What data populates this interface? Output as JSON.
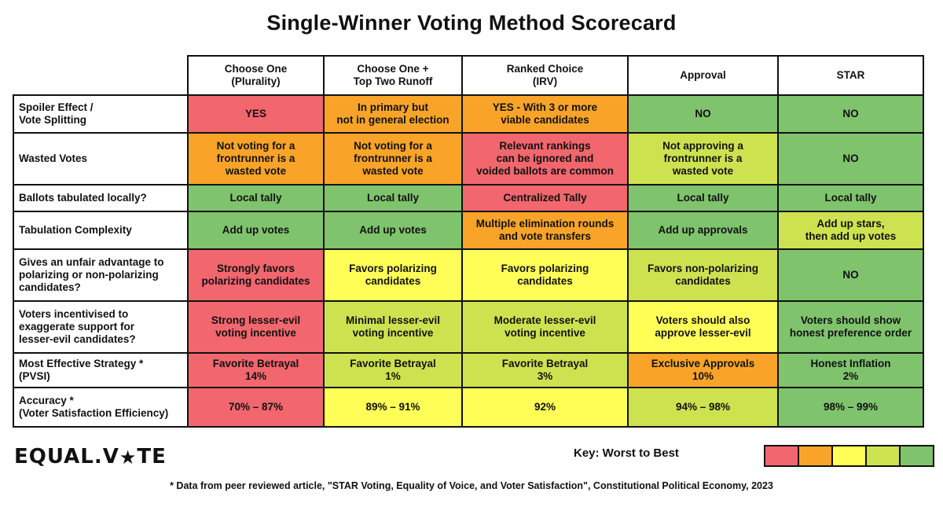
{
  "title": "Single-Winner Voting Method Scorecard",
  "colors": {
    "worst": "#f2666e",
    "bad": "#f9a429",
    "medium": "#ffff57",
    "good": "#cde24f",
    "best": "#7fc36d"
  },
  "columns": [
    "Choose One\n(Plurality)",
    "Choose One +\nTop Two Runoff",
    "Ranked Choice\n(IRV)",
    "Approval",
    "STAR"
  ],
  "rows": [
    {
      "label": "Spoiler Effect /\nVote Splitting",
      "cells": [
        {
          "text": "YES",
          "rating": 1
        },
        {
          "text": "In primary but\nnot in general election",
          "rating": 2
        },
        {
          "text": "YES - With 3 or more\nviable candidates",
          "rating": 2
        },
        {
          "text": "NO",
          "rating": 5
        },
        {
          "text": "NO",
          "rating": 5
        }
      ]
    },
    {
      "label": "Wasted Votes",
      "cells": [
        {
          "text": "Not voting for a\nfrontrunner is a\nwasted vote",
          "rating": 2
        },
        {
          "text": "Not voting for a\nfrontrunner is a\nwasted vote",
          "rating": 2
        },
        {
          "text": "Relevant rankings\ncan be ignored and\nvoided ballots are common",
          "rating": 1
        },
        {
          "text": "Not approving a\nfrontrunner is a\nwasted vote",
          "rating": 4
        },
        {
          "text": "NO",
          "rating": 5
        }
      ]
    },
    {
      "label": "Ballots tabulated locally?",
      "cells": [
        {
          "text": "Local tally",
          "rating": 5
        },
        {
          "text": "Local tally",
          "rating": 5
        },
        {
          "text": "Centralized Tally",
          "rating": 1
        },
        {
          "text": "Local tally",
          "rating": 5
        },
        {
          "text": "Local tally",
          "rating": 5
        }
      ]
    },
    {
      "label": "Tabulation Complexity",
      "cells": [
        {
          "text": "Add up votes",
          "rating": 5
        },
        {
          "text": "Add up votes",
          "rating": 5
        },
        {
          "text": "Multiple elimination rounds\nand vote transfers",
          "rating": 2
        },
        {
          "text": "Add up approvals",
          "rating": 5
        },
        {
          "text": "Add up stars,\nthen add up votes",
          "rating": 4
        }
      ]
    },
    {
      "label": "Gives an unfair advantage to\npolarizing or non-polarizing\ncandidates?",
      "cells": [
        {
          "text": "Strongly favors\npolarizing candidates",
          "rating": 1
        },
        {
          "text": "Favors polarizing\ncandidates",
          "rating": 3
        },
        {
          "text": "Favors polarizing\ncandidates",
          "rating": 3
        },
        {
          "text": "Favors non-polarizing\ncandidates",
          "rating": 4
        },
        {
          "text": "NO",
          "rating": 5
        }
      ]
    },
    {
      "label": "Voters incentivised to\nexaggerate support for\nlesser-evil candidates?",
      "cells": [
        {
          "text": "Strong lesser-evil\nvoting incentive",
          "rating": 1
        },
        {
          "text": "Minimal lesser-evil\nvoting incentive",
          "rating": 4
        },
        {
          "text": "Moderate lesser-evil\nvoting incentive",
          "rating": 4
        },
        {
          "text": "Voters should also\napprove lesser-evil",
          "rating": 3
        },
        {
          "text": "Voters should show\nhonest preference order",
          "rating": 5
        }
      ]
    },
    {
      "label": "Most Effective Strategy *\n(PVSI)",
      "cells": [
        {
          "text": "Favorite Betrayal\n14%",
          "rating": 1
        },
        {
          "text": "Favorite Betrayal\n1%",
          "rating": 4
        },
        {
          "text": "Favorite Betrayal\n3%",
          "rating": 4
        },
        {
          "text": "Exclusive Approvals\n10%",
          "rating": 2
        },
        {
          "text": "Honest Inflation\n2%",
          "rating": 5
        }
      ]
    },
    {
      "label": "Accuracy *\n(Voter Satisfaction Efficiency)",
      "cells": [
        {
          "text": "70% – 87%",
          "rating": 1
        },
        {
          "text": "89% – 91%",
          "rating": 3
        },
        {
          "text": "92%",
          "rating": 3
        },
        {
          "text": "94% – 98%",
          "rating": 4
        },
        {
          "text": "98% – 99%",
          "rating": 5
        }
      ]
    }
  ],
  "logo": {
    "text": "EQUAL.V",
    "star": "★",
    "suffix": "TE"
  },
  "key": {
    "label": "Key:  Worst to Best"
  },
  "footnote": "* Data from peer reviewed article, \"STAR Voting, Equality of Voice, and Voter Satisfaction\", Constitutional Political Economy, 2023"
}
